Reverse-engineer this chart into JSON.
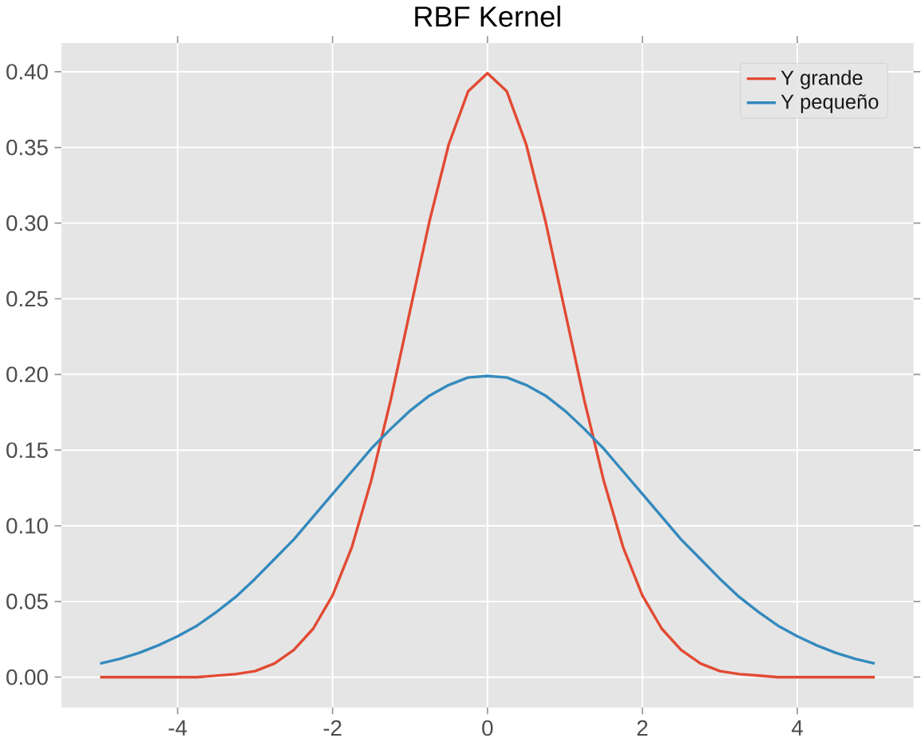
{
  "chart_data": {
    "type": "line",
    "title": "RBF Kernel",
    "x": [
      -5,
      -4.75,
      -4.5,
      -4.25,
      -4,
      -3.75,
      -3.5,
      -3.25,
      -3,
      -2.75,
      -2.5,
      -2.25,
      -2,
      -1.75,
      -1.5,
      -1.25,
      -1,
      -0.75,
      -0.5,
      -0.25,
      0,
      0.25,
      0.5,
      0.75,
      1,
      1.25,
      1.5,
      1.75,
      2,
      2.25,
      2.5,
      2.75,
      3,
      3.25,
      3.5,
      3.75,
      4,
      4.25,
      4.5,
      4.75,
      5
    ],
    "series": [
      {
        "name": "Y grande",
        "color": "#e24a33",
        "values": [
          0,
          0,
          0,
          0,
          0,
          0,
          0.001,
          0.002,
          0.004,
          0.009,
          0.018,
          0.032,
          0.054,
          0.086,
          0.13,
          0.183,
          0.242,
          0.301,
          0.352,
          0.387,
          0.399,
          0.387,
          0.352,
          0.301,
          0.242,
          0.183,
          0.13,
          0.086,
          0.054,
          0.032,
          0.018,
          0.009,
          0.004,
          0.002,
          0.001,
          0,
          0,
          0,
          0,
          0,
          0
        ]
      },
      {
        "name": "Y pequeño",
        "color": "#348abd",
        "values": [
          0.009,
          0.012,
          0.016,
          0.021,
          0.027,
          0.034,
          0.043,
          0.053,
          0.065,
          0.078,
          0.091,
          0.106,
          0.121,
          0.136,
          0.151,
          0.164,
          0.176,
          0.186,
          0.193,
          0.198,
          0.199,
          0.198,
          0.193,
          0.186,
          0.176,
          0.164,
          0.151,
          0.136,
          0.121,
          0.106,
          0.091,
          0.078,
          0.065,
          0.053,
          0.043,
          0.034,
          0.027,
          0.021,
          0.016,
          0.012,
          0.009
        ]
      }
    ],
    "xlim": [
      -5.5,
      5.5
    ],
    "ylim": [
      -0.02,
      0.419
    ],
    "xticks": [
      -4,
      -2,
      0,
      2,
      4
    ],
    "yticks": [
      {
        "value": 0,
        "label": "0.00"
      },
      {
        "value": 0.05,
        "label": "0.05"
      },
      {
        "value": 0.1,
        "label": "0.10"
      },
      {
        "value": 0.15,
        "label": "0.15"
      },
      {
        "value": 0.2,
        "label": "0.20"
      },
      {
        "value": 0.25,
        "label": "0.25"
      },
      {
        "value": 0.3,
        "label": "0.30"
      },
      {
        "value": 0.35,
        "label": "0.35"
      },
      {
        "value": 0.4,
        "label": "0.40"
      }
    ],
    "grid": true,
    "legend": "top right",
    "line_style": "solid",
    "marker": "none"
  }
}
